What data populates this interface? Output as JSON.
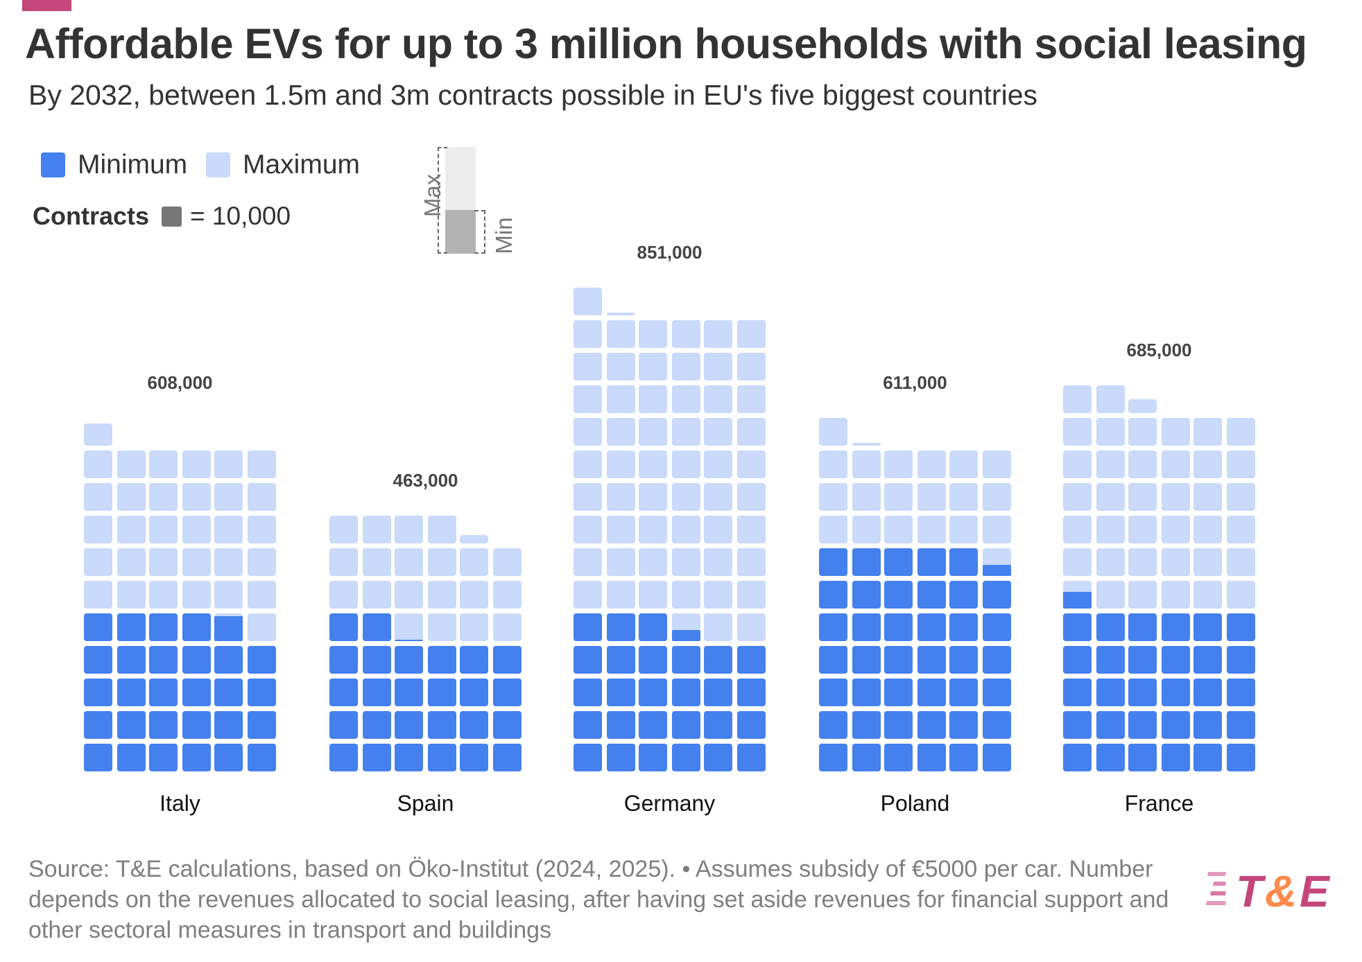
{
  "header": {
    "title": "Affordable EVs for up to 3 million households with social leasing",
    "subtitle": "By 2032, between 1.5m and 3m contracts possible in EU's five biggest countries"
  },
  "legend": {
    "items": [
      {
        "label": "Minimum",
        "color": "#4480ee"
      },
      {
        "label": "Maximum",
        "color": "#c9dafa"
      }
    ],
    "unit_label": "Contracts",
    "unit_value": "= 10,000",
    "unit_color": "#777777",
    "explainer": {
      "max_label": "Max",
      "min_label": "Min"
    }
  },
  "colors": {
    "accent": "#c5467a",
    "minimum": "#4480ee",
    "maximum": "#c9dafa",
    "logo_pink": "#c5467a",
    "logo_orange": "#ff8a4c"
  },
  "chart_data": {
    "type": "waffle",
    "title": "Affordable EVs for up to 3 million households with social leasing",
    "subtitle": "By 2032, between 1.5m and 3m contracts possible in EU's five biggest countries",
    "unit": 10000,
    "blocks_per_row": 6,
    "categories": [
      "Italy",
      "Spain",
      "Germany",
      "Poland",
      "France"
    ],
    "series": [
      {
        "name": "Minimum",
        "values": [
          289000,
          260500,
          274000,
          414000,
          306000
        ]
      },
      {
        "name": "Maximum",
        "values": [
          608000,
          463000,
          851000,
          611000,
          685000
        ]
      }
    ],
    "value_labels": [
      "608,000",
      "463,000",
      "851,000",
      "611,000",
      "685,000"
    ],
    "legend_position": "top-left"
  },
  "footer": {
    "source": "Source: T&E calculations, based on Öko-Institut (2024, 2025). • Assumes subsidy of €5000 per car. Number depends on the revenues allocated to social leasing, after having set aside revenues for financial support and other sectoral measures in transport and buildings",
    "logo_text_t": "T",
    "logo_text_amp": "&",
    "logo_text_e": "E"
  }
}
